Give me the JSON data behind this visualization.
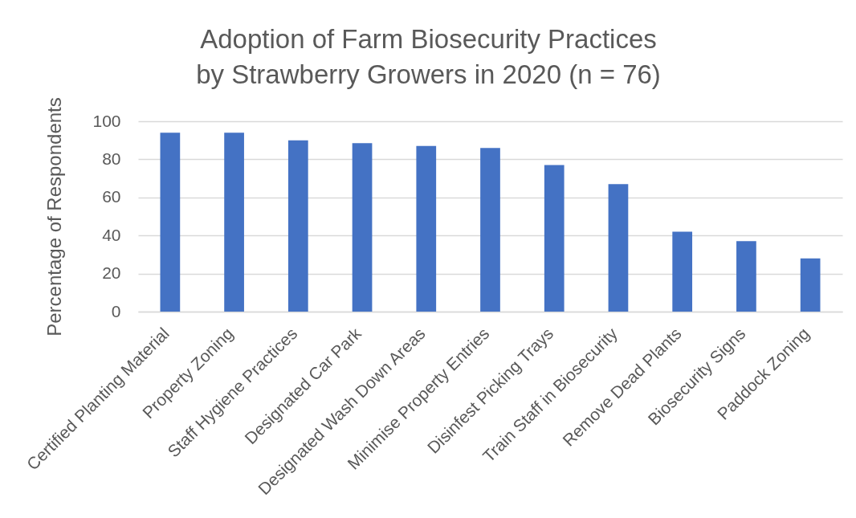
{
  "chart_data": {
    "type": "bar",
    "title": "Adoption of Farm Biosecurity Practices\nby Strawberry Growers in 2020 (n = 76)",
    "ylabel": "Percentage of Respondents",
    "categories": [
      "Certified Planting Material",
      "Property Zoning",
      "Staff Hygiene Practices",
      "Designated Car Park",
      "Designated Wash Down Areas",
      "Minimise Property Entries",
      "Disinfest Picking Trays",
      "Train Staff in Biosecurity",
      "Remove Dead Plants",
      "Biosecurity Signs",
      "Paddock Zoning"
    ],
    "values": [
      94,
      94,
      90,
      88.5,
      87,
      86,
      77,
      67,
      42,
      37,
      28
    ],
    "color": "#4472c4",
    "ylim": [
      0,
      100
    ],
    "yticks": [
      0,
      20,
      40,
      60,
      80,
      100
    ],
    "grid": "y"
  }
}
